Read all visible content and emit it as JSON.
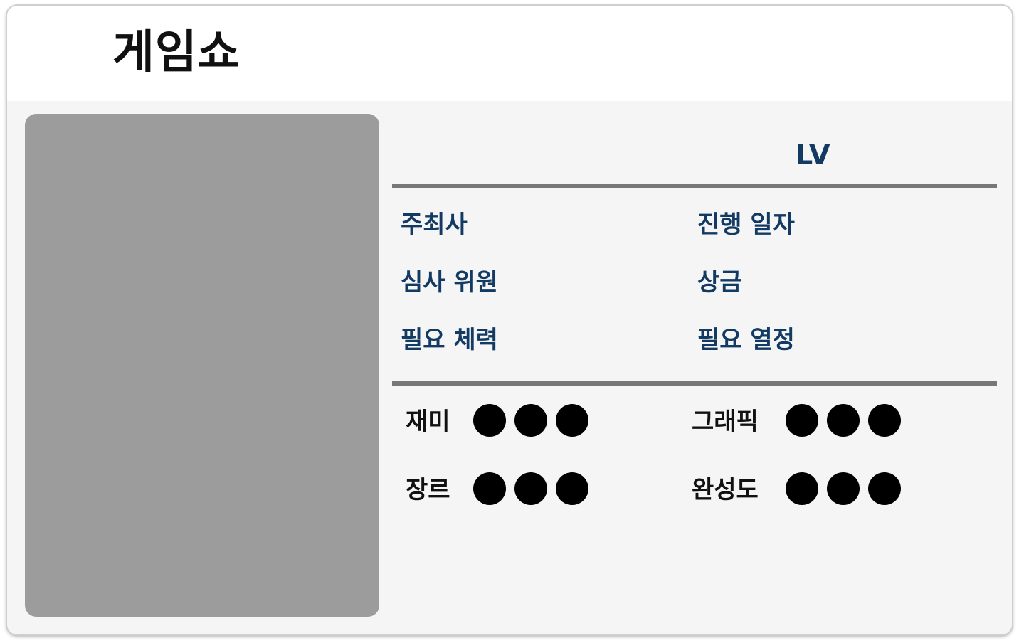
{
  "header": {
    "title": "게임쇼"
  },
  "info": {
    "level_label": "LV",
    "fields": {
      "organizer": "주최사",
      "date": "진행 일자",
      "judges": "심사 위원",
      "prize": "상금",
      "required_stamina": "필요 체력",
      "required_passion": "필요 열정"
    }
  },
  "stats": {
    "fun": {
      "label": "재미",
      "rating": 3,
      "max": 3
    },
    "graphics": {
      "label": "그래픽",
      "rating": 3,
      "max": 3
    },
    "genre": {
      "label": "장르",
      "rating": 3,
      "max": 3
    },
    "completeness": {
      "label": "완성도",
      "rating": 3,
      "max": 3
    }
  },
  "colors": {
    "field_text": "#123a63",
    "title_text": "#111111",
    "photo_placeholder": "#9b9c9b",
    "divider": "#777777",
    "rating_dot": "#000000"
  }
}
